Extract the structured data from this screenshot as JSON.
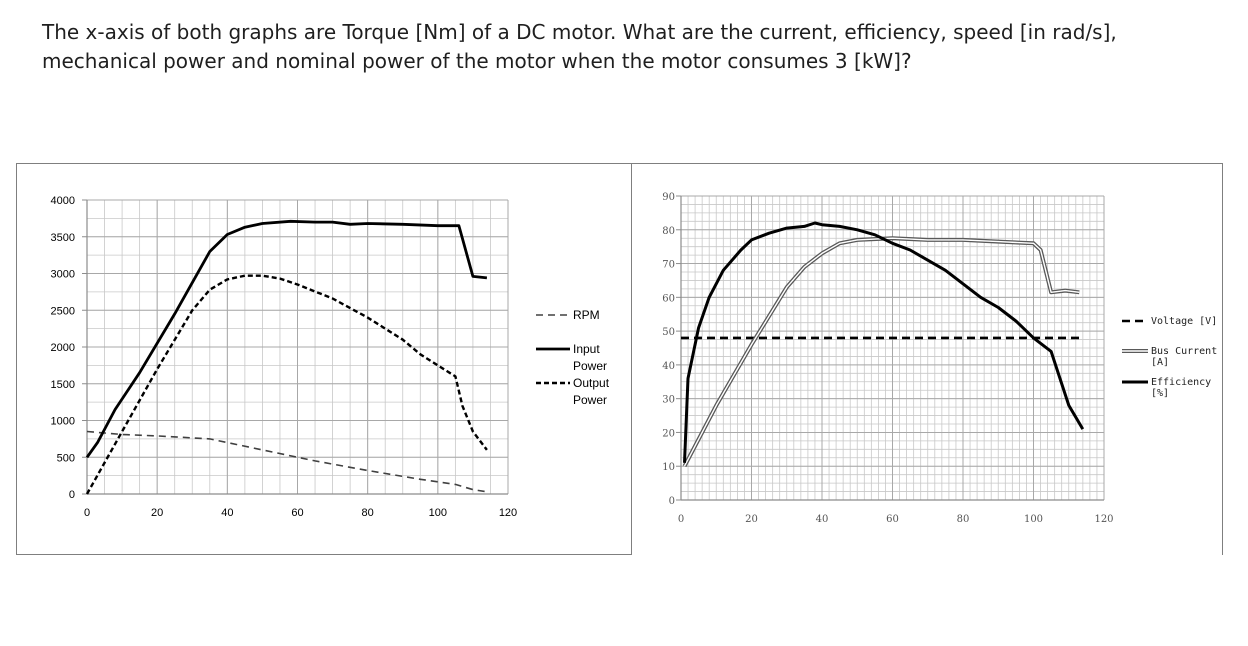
{
  "question": {
    "text": "The x-axis of both graphs are Torque [Nm] of a DC motor. What are the current, efficiency, speed [in rad/s], mechanical power and nominal power of the motor when the motor consumes 3 [kW]?"
  },
  "chart_data": [
    {
      "type": "line",
      "xlim": [
        0,
        120
      ],
      "ylim": [
        0,
        4000
      ],
      "x_ticks": [
        0,
        20,
        40,
        60,
        80,
        100,
        120
      ],
      "y_ticks": [
        0,
        500,
        1000,
        1500,
        2000,
        2500,
        3000,
        3500,
        4000
      ],
      "grid": true,
      "legend_position": "right",
      "colors": {
        "series": "#000000",
        "rpm": "#404040",
        "grid": "#c8c8c8",
        "axis": "#8c8c8c"
      },
      "series": [
        {
          "name": "RPM",
          "style": "dashed-gray",
          "points": [
            [
              0,
              850
            ],
            [
              10,
              810
            ],
            [
              20,
              790
            ],
            [
              35,
              750
            ],
            [
              50,
              600
            ],
            [
              65,
              450
            ],
            [
              80,
              320
            ],
            [
              95,
              200
            ],
            [
              105,
              130
            ],
            [
              110,
              60
            ],
            [
              114,
              30
            ]
          ]
        },
        {
          "name": "Input Power",
          "style": "solid",
          "points": [
            [
              0,
              500
            ],
            [
              3,
              700
            ],
            [
              8,
              1150
            ],
            [
              15,
              1650
            ],
            [
              25,
              2450
            ],
            [
              35,
              3300
            ],
            [
              40,
              3530
            ],
            [
              45,
              3630
            ],
            [
              50,
              3680
            ],
            [
              58,
              3710
            ],
            [
              65,
              3700
            ],
            [
              70,
              3700
            ],
            [
              75,
              3670
            ],
            [
              80,
              3680
            ],
            [
              90,
              3670
            ],
            [
              100,
              3650
            ],
            [
              106,
              3650
            ],
            [
              110,
              2960
            ],
            [
              114,
              2940
            ]
          ]
        },
        {
          "name": "Output Power",
          "style": "dashed-bold",
          "points": [
            [
              0,
              0
            ],
            [
              10,
              850
            ],
            [
              20,
              1700
            ],
            [
              30,
              2500
            ],
            [
              35,
              2780
            ],
            [
              40,
              2920
            ],
            [
              45,
              2970
            ],
            [
              50,
              2970
            ],
            [
              55,
              2930
            ],
            [
              60,
              2850
            ],
            [
              70,
              2660
            ],
            [
              80,
              2400
            ],
            [
              90,
              2100
            ],
            [
              95,
              1900
            ],
            [
              100,
              1750
            ],
            [
              105,
              1600
            ],
            [
              107,
              1200
            ],
            [
              110,
              850
            ],
            [
              114,
              600
            ]
          ]
        }
      ]
    },
    {
      "type": "line",
      "xlim": [
        0,
        120
      ],
      "ylim": [
        0,
        90
      ],
      "x_ticks": [
        0,
        20,
        40,
        60,
        80,
        100,
        120
      ],
      "y_ticks": [
        0,
        10,
        20,
        30,
        40,
        50,
        60,
        70,
        80,
        90
      ],
      "grid": true,
      "legend_position": "right",
      "colors": {
        "series": "#000000",
        "current": "#595959",
        "grid": "#c8c8c8",
        "axis": "#8c8c8c"
      },
      "series": [
        {
          "name": "Voltage [V]",
          "style": "dashed-bold",
          "points": [
            [
              0,
              48
            ],
            [
              114,
              48
            ]
          ]
        },
        {
          "name": "Bus Current [A]",
          "style": "double-gray",
          "points": [
            [
              1,
              10
            ],
            [
              10,
              28
            ],
            [
              20,
              46
            ],
            [
              30,
              63
            ],
            [
              35,
              69
            ],
            [
              40,
              73
            ],
            [
              45,
              76
            ],
            [
              50,
              77
            ],
            [
              60,
              77.5
            ],
            [
              70,
              77
            ],
            [
              80,
              77
            ],
            [
              90,
              76.5
            ],
            [
              100,
              76
            ],
            [
              102,
              74
            ],
            [
              105,
              61.5
            ],
            [
              109,
              62
            ],
            [
              113,
              61.5
            ]
          ]
        },
        {
          "name": "Efficiency [%]",
          "style": "solid",
          "points": [
            [
              1,
              11
            ],
            [
              2,
              36
            ],
            [
              5,
              51
            ],
            [
              8,
              60
            ],
            [
              12,
              68
            ],
            [
              17,
              74
            ],
            [
              20,
              77
            ],
            [
              25,
              79
            ],
            [
              30,
              80.5
            ],
            [
              35,
              81
            ],
            [
              38,
              82
            ],
            [
              40,
              81.5
            ],
            [
              45,
              81
            ],
            [
              50,
              80
            ],
            [
              55,
              78.5
            ],
            [
              60,
              76
            ],
            [
              65,
              74
            ],
            [
              70,
              71
            ],
            [
              75,
              68
            ],
            [
              80,
              64
            ],
            [
              85,
              60
            ],
            [
              90,
              57
            ],
            [
              95,
              53
            ],
            [
              100,
              48
            ],
            [
              105,
              44
            ],
            [
              110,
              28
            ],
            [
              114,
              21
            ]
          ]
        }
      ]
    }
  ]
}
